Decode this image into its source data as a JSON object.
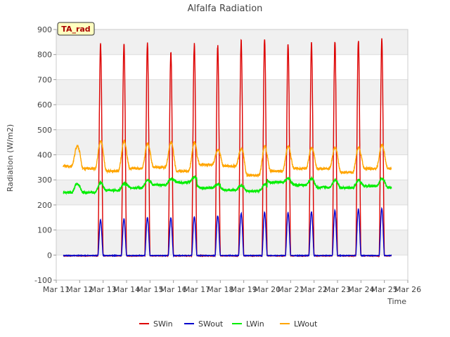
{
  "chart_data": {
    "type": "line",
    "title": "Alfalfa Radiation",
    "xlabel": "Time",
    "ylabel": "Radiation (W/m2)",
    "badge": "TA_rad",
    "xlim": [
      11,
      26
    ],
    "ylim": [
      -100,
      900
    ],
    "x_ticks": [
      "Mar 11",
      "Mar 12",
      "Mar 13",
      "Mar 14",
      "Mar 15",
      "Mar 16",
      "Mar 17",
      "Mar 18",
      "Mar 19",
      "Mar 20",
      "Mar 21",
      "Mar 22",
      "Mar 23",
      "Mar 24",
      "Mar 25",
      "Mar 26"
    ],
    "y_ticks": [
      -100,
      0,
      100,
      200,
      300,
      400,
      500,
      600,
      700,
      800,
      900
    ],
    "grid": true,
    "legend_position": "bottom",
    "days": [
      11.3,
      12.3,
      13.3,
      14.3,
      15.3,
      16.3,
      17.3,
      18.3,
      19.3,
      20.3,
      21.3,
      22.3,
      23.3,
      24.3,
      25.3
    ],
    "series": [
      {
        "name": "SWin",
        "color": "#dd0000",
        "kind": "solar",
        "peaks": [
          845,
          848,
          845,
          808,
          840,
          835,
          855,
          865,
          845,
          843,
          850,
          857,
          858,
          858
        ],
        "night": -3
      },
      {
        "name": "SWout",
        "color": "#0000cc",
        "kind": "solar",
        "peaks": [
          140,
          143,
          150,
          148,
          152,
          157,
          166,
          170,
          168,
          172,
          178,
          183,
          186,
          183
        ],
        "night": -2
      },
      {
        "name": "LWin",
        "color": "#00ee00",
        "kind": "thermal",
        "base": [
          250,
          250,
          258,
          268,
          280,
          290,
          268,
          260,
          255,
          290,
          280,
          270,
          268,
          275,
          270
        ],
        "peak": [
          285,
          290,
          285,
          300,
          305,
          312,
          282,
          278,
          282,
          305,
          305,
          300,
          300,
          305,
          310
        ]
      },
      {
        "name": "LWout",
        "color": "#ffa500",
        "kind": "thermal",
        "base": [
          355,
          345,
          335,
          345,
          350,
          335,
          360,
          355,
          318,
          335,
          345,
          345,
          330,
          345,
          345
        ],
        "peak": [
          435,
          455,
          455,
          445,
          450,
          450,
          420,
          425,
          435,
          435,
          428,
          428,
          430,
          440,
          440
        ]
      }
    ]
  }
}
